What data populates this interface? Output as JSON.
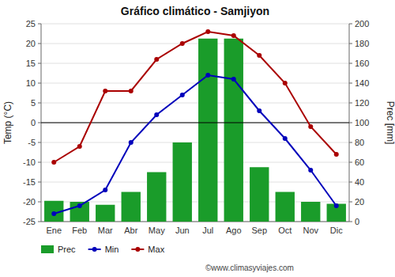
{
  "chart_data": {
    "type": "bar",
    "title": "Gráfico climático - Samjiyon",
    "categories": [
      "Ene",
      "Feb",
      "Mar",
      "Abr",
      "May",
      "Jun",
      "Jul",
      "Ago",
      "Sep",
      "Oct",
      "Nov",
      "Dic"
    ],
    "series": [
      {
        "name": "Prec",
        "type": "bar",
        "axis": "y2",
        "color": "#1a9c2a",
        "values": [
          21,
          20,
          17,
          30,
          50,
          80,
          185,
          185,
          55,
          30,
          20,
          18
        ]
      },
      {
        "name": "Min",
        "type": "line",
        "color": "#0000bb",
        "marker": "circle",
        "values": [
          -23,
          -21,
          -17,
          -5,
          2,
          7,
          12,
          11,
          3,
          -4,
          -12,
          -21
        ]
      },
      {
        "name": "Max",
        "type": "line",
        "color": "#aa0000",
        "marker": "circle",
        "values": [
          -10,
          -6,
          8,
          8,
          16,
          20,
          23,
          22,
          17,
          10,
          -1,
          -8
        ]
      }
    ],
    "ylim": [
      -25,
      25
    ],
    "yticks": [
      -25,
      -20,
      -15,
      -10,
      -5,
      0,
      5,
      10,
      15,
      20,
      25
    ],
    "y2lim": [
      0,
      200
    ],
    "y2ticks": [
      0,
      20,
      40,
      60,
      80,
      100,
      120,
      140,
      160,
      180,
      200
    ],
    "ylabel": "Temp (°C)",
    "y2label": "Prec [mm]",
    "grid": true,
    "legend": "bottom",
    "annotations": [
      "©www.climasyviajes.com"
    ]
  }
}
